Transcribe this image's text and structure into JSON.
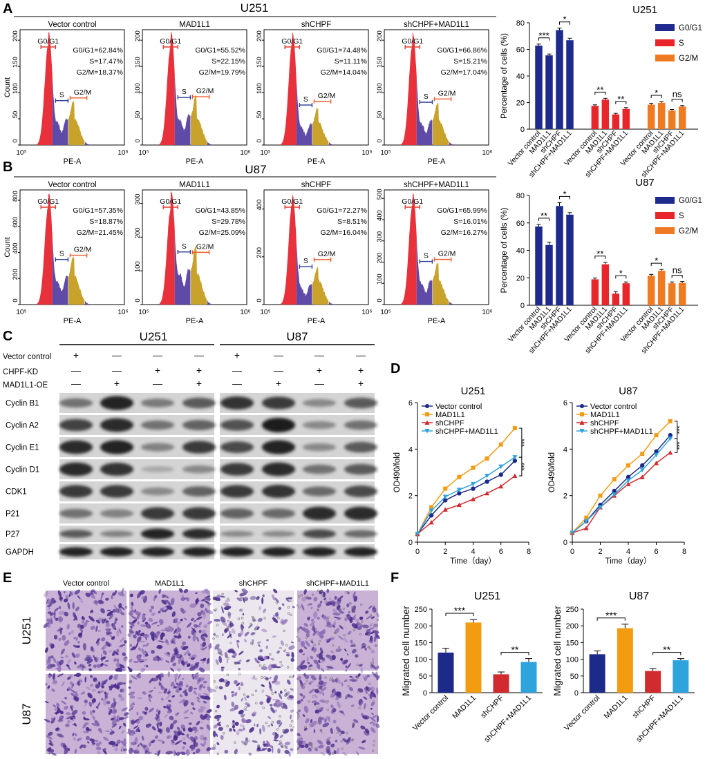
{
  "colors": {
    "navy": "#1f2a8f",
    "red": "#e8252b",
    "orange": "#f07a22",
    "gold": "#f0a21a",
    "sky": "#38a9e0",
    "flow_red": "#e8313a",
    "flow_purple": "#5f4aa8",
    "flow_gold": "#c8a22a",
    "gate_red": "#e23b2a",
    "gate_blue": "#283a96",
    "gate_orange": "#ef5a24",
    "cross_navy": "#1c2a8a",
    "cross_orange": "#f39c12",
    "cross_red": "#d12b2f",
    "cross_sky": "#2fa3dc",
    "blot": "#1a1a1a",
    "stain": "#6a4c9c"
  },
  "panels": {
    "A": {
      "letter": "A",
      "cell_line": "U251"
    },
    "B": {
      "letter": "B",
      "cell_line": "U87"
    },
    "C": {
      "letter": "C",
      "lines": [
        "U251",
        "U87"
      ]
    },
    "D": {
      "letter": "D"
    },
    "E": {
      "letter": "E"
    },
    "F": {
      "letter": "F"
    }
  },
  "chart_data": [
    {
      "panel": "A",
      "type": "histogram",
      "title": "Vector control",
      "xlabel": "PE-A",
      "ylabel": "Count",
      "xtick_labels": [
        "10⁵",
        "10⁶"
      ],
      "ytick_labels": [
        "0",
        "50",
        "100",
        "150",
        "200"
      ],
      "gates": [
        "G0/G1",
        "S",
        "G2/M"
      ],
      "stats": [
        "G0/G1=62.84%",
        "S=17.47%",
        "G2/M=18.37%"
      ],
      "phases": {
        "g1": 62.84,
        "s": 17.47,
        "g2m": 18.37
      }
    },
    {
      "panel": "A",
      "type": "histogram",
      "title": "MAD1L1",
      "xlabel": "PE-A",
      "xtick_labels": [
        "10⁵",
        "10⁶"
      ],
      "ytick_labels": [
        "0",
        "50",
        "100",
        "150",
        "200"
      ],
      "gates": [
        "G0/G1",
        "S",
        "G2/M"
      ],
      "stats": [
        "G0/G1=55.52%",
        "S=22.15%",
        "G2/M=19.79%"
      ],
      "phases": {
        "g1": 55.52,
        "s": 22.15,
        "g2m": 19.79
      }
    },
    {
      "panel": "A",
      "type": "histogram",
      "title": "shCHPF",
      "xlabel": "PE-A",
      "xtick_labels": [
        "10⁵",
        "10⁶"
      ],
      "ytick_labels": [
        "0",
        "50",
        "100",
        "150",
        "200"
      ],
      "gates": [
        "G0/G1",
        "S",
        "G2/M"
      ],
      "stats": [
        "G0/G1=74.48%",
        "S=11.11%",
        "G2/M=14.04%"
      ],
      "phases": {
        "g1": 74.48,
        "s": 11.11,
        "g2m": 14.04
      }
    },
    {
      "panel": "A",
      "type": "histogram",
      "title": "shCHPF+MAD1L1",
      "xlabel": "PE-A",
      "xtick_labels": [
        "10⁵",
        "10⁶"
      ],
      "ytick_labels": [
        "0",
        "50",
        "100",
        "150",
        "200"
      ],
      "gates": [
        "G0/G1",
        "S",
        "G2/M"
      ],
      "stats": [
        "G0/G1=66.86%",
        "S=15.21%",
        "G2/M=17.04%"
      ],
      "phases": {
        "g1": 66.86,
        "s": 15.21,
        "g2m": 17.04
      }
    },
    {
      "panel": "B",
      "type": "histogram",
      "title": "Vector control",
      "xlabel": "PE-A",
      "ylabel": "Count",
      "xtick_labels": [
        "10⁵",
        "10⁶"
      ],
      "ytick_labels": [
        "0",
        "200",
        "400",
        "600",
        "800"
      ],
      "gates": [
        "G0/G1",
        "S",
        "G2/M"
      ],
      "stats": [
        "G0/G1=57.35%",
        "S=18.87%",
        "G2/M=21.45%"
      ],
      "phases": {
        "g1": 57.35,
        "s": 18.87,
        "g2m": 21.45
      }
    },
    {
      "panel": "B",
      "type": "histogram",
      "title": "MAD1L1",
      "xlabel": "PE-A",
      "xtick_labels": [
        "10⁵",
        "10⁶"
      ],
      "ytick_labels": [
        "0",
        "100",
        "200",
        "300"
      ],
      "gates": [
        "G0/G1",
        "S",
        "G2/M"
      ],
      "stats": [
        "G0/G1=43.85%",
        "S=29.78%",
        "G2/M=25.09%"
      ],
      "phases": {
        "g1": 43.85,
        "s": 29.78,
        "g2m": 25.09
      }
    },
    {
      "panel": "B",
      "type": "histogram",
      "title": "shCHPF",
      "xlabel": "PE-A",
      "xtick_labels": [
        "10⁵",
        "10⁶"
      ],
      "ytick_labels": [
        "0",
        "200",
        "400"
      ],
      "gates": [
        "G0/G1",
        "S",
        "G2/M"
      ],
      "stats": [
        "G0/G1=72.27%",
        "S=8.51%",
        "G2/M=16.04%"
      ],
      "phases": {
        "g1": 72.27,
        "s": 8.51,
        "g2m": 16.04
      }
    },
    {
      "panel": "B",
      "type": "histogram",
      "title": "shCHPF+MAD1L1",
      "xlabel": "PE-A",
      "xtick_labels": [
        "10⁵",
        "10⁶"
      ],
      "ytick_labels": [
        "0",
        "100",
        "200",
        "300",
        "400",
        "500"
      ],
      "gates": [
        "G0/G1",
        "S",
        "G2/M"
      ],
      "stats": [
        "G0/G1=65.99%",
        "S=16.01%",
        "G2/M=16.27%"
      ],
      "phases": {
        "g1": 65.99,
        "s": 16.01,
        "g2m": 16.27
      }
    },
    {
      "panel": "A",
      "type": "bar",
      "title": "U251",
      "ylabel": "Percentage of cells (%)",
      "ylim": [
        0,
        80
      ],
      "yticks": [
        0,
        20,
        40,
        60,
        80
      ],
      "categories": [
        "Vector control",
        "MAD1L1",
        "shCHPF",
        "shCHPF+MAD1L1"
      ],
      "series": [
        {
          "name": "G0/G1",
          "values": [
            62.8,
            55.5,
            74.5,
            66.9
          ],
          "errors": [
            1.2,
            1.0,
            1.5,
            1.5
          ]
        },
        {
          "name": "S",
          "values": [
            17.5,
            22.2,
            11.1,
            15.2
          ],
          "errors": [
            0.8,
            1.0,
            0.8,
            1.0
          ]
        },
        {
          "name": "G2/M",
          "values": [
            18.4,
            19.8,
            14.0,
            17.0
          ],
          "errors": [
            1.0,
            1.0,
            0.8,
            0.8
          ]
        }
      ],
      "significance": [
        {
          "series": "G0/G1",
          "labels": [
            "***",
            "*"
          ]
        },
        {
          "series": "S",
          "labels": [
            "**",
            "**"
          ]
        },
        {
          "series": "G2/M",
          "labels": [
            "*",
            "ns"
          ]
        }
      ],
      "legend": "top-right"
    },
    {
      "panel": "B",
      "type": "bar",
      "title": "U87",
      "ylabel": "Percentage of cells (%)",
      "ylim": [
        0,
        80
      ],
      "yticks": [
        0,
        20,
        40,
        60,
        80
      ],
      "categories": [
        "Vector control",
        "MAD1L1",
        "shCHPF",
        "shCHPF+MAD1L1"
      ],
      "series": [
        {
          "name": "G0/G1",
          "values": [
            57.4,
            43.9,
            72.3,
            66.0
          ],
          "errors": [
            1.5,
            2.0,
            2.5,
            1.5
          ]
        },
        {
          "name": "S",
          "values": [
            18.9,
            29.8,
            8.5,
            16.0
          ],
          "errors": [
            1.0,
            1.5,
            1.5,
            1.0
          ]
        },
        {
          "name": "G2/M",
          "values": [
            21.5,
            25.1,
            16.0,
            16.3
          ],
          "errors": [
            1.0,
            1.0,
            1.0,
            1.0
          ]
        }
      ],
      "significance": [
        {
          "series": "G0/G1",
          "labels": [
            "**",
            "*"
          ]
        },
        {
          "series": "S",
          "labels": [
            "**",
            "*"
          ]
        },
        {
          "series": "G2/M",
          "labels": [
            "*",
            "ns"
          ]
        }
      ],
      "legend": "top-right"
    },
    {
      "panel": "D",
      "type": "line",
      "title": "U251",
      "xlabel": "Time（day）",
      "ylabel": "OD490/fold",
      "xlim": [
        0,
        8
      ],
      "ylim": [
        0,
        6
      ],
      "xticks": [
        0,
        2,
        4,
        6,
        8
      ],
      "yticks": [
        0,
        2,
        4,
        6
      ],
      "x": [
        0,
        1,
        2,
        3,
        4,
        5,
        6,
        7
      ],
      "series": [
        {
          "name": "Vector control",
          "values": [
            0.35,
            1.15,
            1.8,
            2.1,
            2.3,
            2.6,
            2.9,
            3.5
          ]
        },
        {
          "name": "MAD1L1",
          "values": [
            0.35,
            1.5,
            2.3,
            2.8,
            3.2,
            3.6,
            4.2,
            4.9
          ]
        },
        {
          "name": "shCHPF",
          "values": [
            0.35,
            0.85,
            1.4,
            1.6,
            1.85,
            2.1,
            2.4,
            2.85
          ]
        },
        {
          "name": "shCHPF+MAD1L1",
          "values": [
            0.35,
            1.35,
            1.95,
            2.25,
            2.5,
            2.85,
            3.25,
            3.65
          ]
        }
      ],
      "significance": [
        "***",
        "***"
      ],
      "legend": "top-left"
    },
    {
      "panel": "D",
      "type": "line",
      "title": "U87",
      "xlabel": "Time（day）",
      "ylabel": "OD490/fold",
      "xlim": [
        0,
        8
      ],
      "ylim": [
        0,
        6
      ],
      "xticks": [
        0,
        2,
        4,
        6,
        8
      ],
      "yticks": [
        0,
        2,
        4,
        6
      ],
      "x": [
        0,
        1,
        2,
        3,
        4,
        5,
        6,
        7
      ],
      "series": [
        {
          "name": "Vector control",
          "values": [
            0.4,
            0.9,
            1.6,
            2.2,
            2.8,
            3.3,
            3.9,
            4.6
          ]
        },
        {
          "name": "MAD1L1",
          "values": [
            0.4,
            1.05,
            2.0,
            2.7,
            3.3,
            3.8,
            4.6,
            5.2
          ]
        },
        {
          "name": "shCHPF",
          "values": [
            0.4,
            0.6,
            1.5,
            2.0,
            2.5,
            2.8,
            3.4,
            3.85
          ]
        },
        {
          "name": "shCHPF+MAD1L1",
          "values": [
            0.4,
            0.9,
            1.5,
            2.05,
            2.65,
            3.1,
            3.75,
            4.45
          ]
        }
      ],
      "significance": [
        "***",
        "***"
      ],
      "legend": "top-left"
    },
    {
      "panel": "F",
      "type": "bar",
      "title": "U251",
      "ylabel": "Migrated cell number",
      "ylim": [
        0,
        250
      ],
      "yticks": [
        0,
        50,
        100,
        150,
        200,
        250
      ],
      "categories": [
        "Vector control",
        "MAD1L1",
        "shCHPF",
        "shCHPF+MAD1L1"
      ],
      "values": [
        120,
        210,
        55,
        92
      ],
      "errors": [
        13,
        9,
        7,
        10
      ],
      "significance": [
        "***",
        "**"
      ]
    },
    {
      "panel": "F",
      "type": "bar",
      "title": "U87",
      "ylabel": "Migrated cell number",
      "ylim": [
        0,
        250
      ],
      "yticks": [
        0,
        50,
        100,
        150,
        200,
        250
      ],
      "categories": [
        "Vector control",
        "MAD1L1",
        "shCHPF",
        "shCHPF+MAD1L1"
      ],
      "values": [
        115,
        193,
        65,
        97
      ],
      "errors": [
        10,
        12,
        7,
        5
      ],
      "significance": [
        "***",
        "**"
      ]
    }
  ],
  "western": {
    "conditions": [
      {
        "label": "Vector control",
        "marks": [
          "+",
          "—",
          "—",
          "—"
        ]
      },
      {
        "label": "CHPF-KD",
        "marks": [
          "—",
          "—",
          "+",
          "+"
        ]
      },
      {
        "label": "MAD1L1-OE",
        "marks": [
          "—",
          "+",
          "—",
          "+"
        ]
      }
    ],
    "proteins": [
      {
        "name": "Cyclin B1",
        "u251": [
          0.45,
          0.95,
          0.4,
          0.6
        ],
        "u87": [
          0.85,
          0.8,
          0.3,
          0.6
        ]
      },
      {
        "name": "Cyclin A2",
        "u251": [
          0.75,
          0.9,
          0.45,
          0.55
        ],
        "u87": [
          0.65,
          1.0,
          0.3,
          0.45
        ]
      },
      {
        "name": "Cyclin E1",
        "u251": [
          0.9,
          0.95,
          0.35,
          0.8
        ],
        "u87": [
          0.7,
          0.95,
          0.3,
          0.6
        ]
      },
      {
        "name": "Cyclin D1",
        "u251": [
          0.9,
          0.85,
          0.1,
          0.3
        ],
        "u87": [
          0.8,
          0.9,
          0.45,
          0.6
        ]
      },
      {
        "name": "CDK1",
        "u251": [
          0.8,
          0.8,
          0.3,
          0.55
        ],
        "u87": [
          0.8,
          0.85,
          0.5,
          0.7
        ]
      },
      {
        "name": "P21",
        "u251": [
          0.45,
          0.35,
          0.8,
          0.8
        ],
        "u87": [
          0.55,
          0.5,
          0.9,
          0.9
        ]
      },
      {
        "name": "P27",
        "u251": [
          0.6,
          0.35,
          0.95,
          0.9
        ],
        "u87": [
          0.3,
          0.3,
          0.7,
          0.5
        ]
      },
      {
        "name": "GAPDH",
        "u251": [
          0.95,
          0.95,
          0.95,
          0.95
        ],
        "u87": [
          0.95,
          0.95,
          0.95,
          0.95
        ]
      }
    ]
  },
  "transwell": {
    "columns": [
      "Vector control",
      "MAD1L1",
      "shCHPF",
      "shCHPF+MAD1L1"
    ],
    "rows": [
      "U251",
      "U87"
    ],
    "density": [
      [
        0.9,
        1.0,
        0.35,
        0.7
      ],
      [
        0.85,
        0.95,
        0.45,
        0.6
      ]
    ]
  }
}
